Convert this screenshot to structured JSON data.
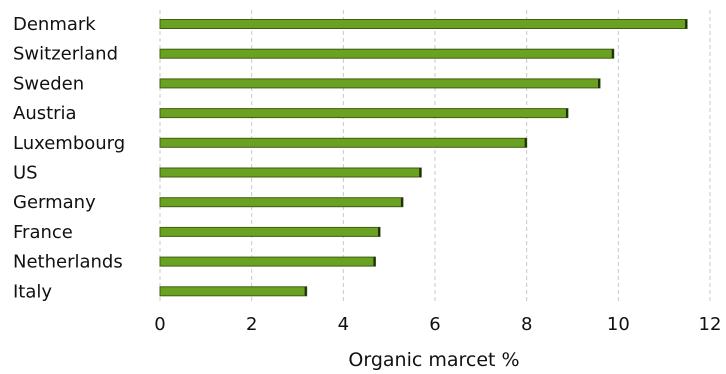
{
  "chart_data": {
    "type": "bar",
    "orientation": "horizontal",
    "categories": [
      "Denmark",
      "Switzerland",
      "Sweden",
      "Austria",
      "Luxembourg",
      "US",
      "Germany",
      "France",
      "Netherlands",
      "Italy"
    ],
    "values": [
      11.5,
      9.9,
      9.6,
      8.9,
      8.0,
      5.7,
      5.3,
      4.8,
      4.7,
      3.2
    ],
    "xlabel": "Organic marcet %",
    "ylabel": "",
    "xlim": [
      0,
      12
    ],
    "xticks": [
      "0",
      "2",
      "4",
      "6",
      "8",
      "10",
      "12"
    ],
    "grid": "vertical",
    "bar_color": "#6aa121"
  }
}
